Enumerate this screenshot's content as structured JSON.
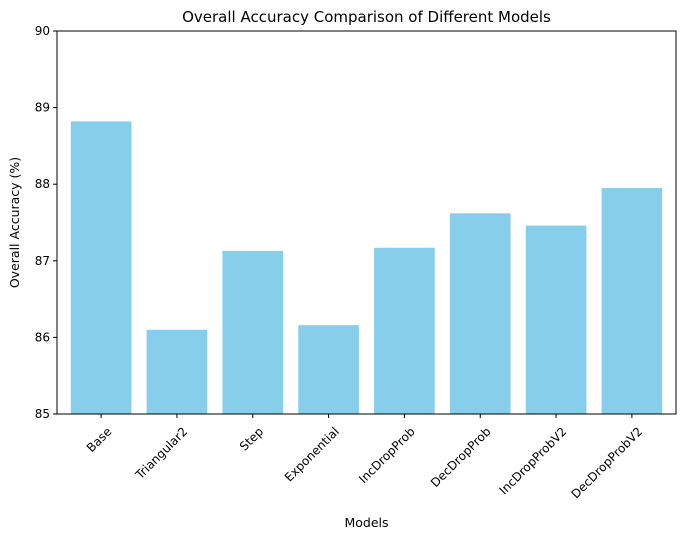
{
  "chart_data": {
    "type": "bar",
    "title": "Overall Accuracy Comparison of Different Models",
    "xlabel": "Models",
    "ylabel": "Overall Accuracy (%)",
    "categories": [
      "Base",
      "Triangular2",
      "Step",
      "Exponential",
      "IncDropProb",
      "DecDropProb",
      "IncDropProbV2",
      "DecDropProbV2"
    ],
    "values": [
      88.82,
      86.1,
      87.13,
      86.16,
      87.17,
      87.62,
      87.46,
      87.95
    ],
    "ylim": [
      85,
      90
    ],
    "yticks": [
      85,
      86,
      87,
      88,
      89,
      90
    ],
    "bar_color": "#87ceeb",
    "grid": false,
    "legend": "none",
    "xtick_rotation": 45
  }
}
